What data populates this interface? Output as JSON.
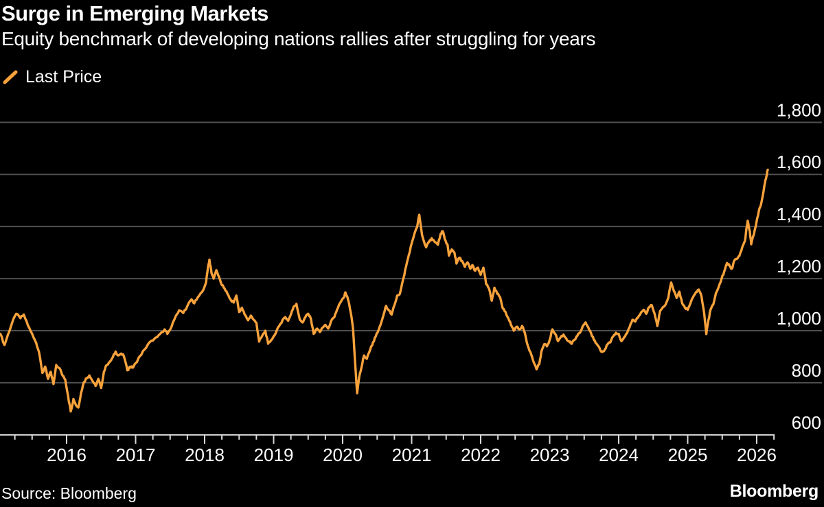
{
  "header": {
    "title": "Surge in Emerging Markets",
    "subtitle": "Equity benchmark of developing nations rallies after struggling for years"
  },
  "legend": {
    "label": "Last Price",
    "swatch": "orange-slash"
  },
  "footer": {
    "source": "Source: Bloomberg",
    "brand": "Bloomberg"
  },
  "colors": {
    "background": "#000000",
    "text": "#ffffff",
    "grid": "#4f4f4f",
    "axis": "#d9d9d9",
    "series": "#f7a23c"
  },
  "chart_data": {
    "type": "line",
    "title": "Surge in Emerging Markets",
    "subtitle": "Equity benchmark of developing nations rallies after struggling for years",
    "xlabel": "",
    "ylabel": "",
    "x_unit": "decimal_year",
    "x_year_ticks": [
      2016,
      2017,
      2018,
      2019,
      2020,
      2021,
      2022,
      2023,
      2024,
      2025,
      2026
    ],
    "x_minor_tick_step": 0.25,
    "xlim": [
      2015.03,
      2026.27
    ],
    "y_ticks": [
      600,
      800,
      1000,
      1200,
      1400,
      1600,
      1800
    ],
    "ylim": [
      600,
      1800
    ],
    "grid": "horizontal",
    "y_axis_side": "right",
    "legend_position": "top-left",
    "jitter_amplitude": 8,
    "series": [
      {
        "name": "Last Price",
        "color": "#f7a23c",
        "points": [
          [
            2015.04,
            988
          ],
          [
            2015.1,
            945
          ],
          [
            2015.15,
            985
          ],
          [
            2015.21,
            1030
          ],
          [
            2015.27,
            1065
          ],
          [
            2015.33,
            1048
          ],
          [
            2015.38,
            1062
          ],
          [
            2015.44,
            1020
          ],
          [
            2015.5,
            988
          ],
          [
            2015.56,
            952
          ],
          [
            2015.6,
            918
          ],
          [
            2015.65,
            838
          ],
          [
            2015.69,
            862
          ],
          [
            2015.73,
            815
          ],
          [
            2015.77,
            842
          ],
          [
            2015.81,
            795
          ],
          [
            2015.85,
            868
          ],
          [
            2015.9,
            855
          ],
          [
            2015.94,
            828
          ],
          [
            2015.98,
            812
          ],
          [
            2016.02,
            752
          ],
          [
            2016.06,
            690
          ],
          [
            2016.1,
            738
          ],
          [
            2016.14,
            712
          ],
          [
            2016.17,
            705
          ],
          [
            2016.21,
            762
          ],
          [
            2016.25,
            802
          ],
          [
            2016.29,
            818
          ],
          [
            2016.33,
            828
          ],
          [
            2016.38,
            805
          ],
          [
            2016.42,
            788
          ],
          [
            2016.46,
            815
          ],
          [
            2016.5,
            780
          ],
          [
            2016.54,
            842
          ],
          [
            2016.58,
            868
          ],
          [
            2016.63,
            882
          ],
          [
            2016.67,
            898
          ],
          [
            2016.71,
            920
          ],
          [
            2016.75,
            905
          ],
          [
            2016.79,
            912
          ],
          [
            2016.83,
            902
          ],
          [
            2016.88,
            848
          ],
          [
            2016.92,
            862
          ],
          [
            2016.96,
            858
          ],
          [
            2017.0,
            875
          ],
          [
            2017.06,
            902
          ],
          [
            2017.13,
            928
          ],
          [
            2017.19,
            952
          ],
          [
            2017.25,
            962
          ],
          [
            2017.31,
            975
          ],
          [
            2017.38,
            995
          ],
          [
            2017.42,
            1005
          ],
          [
            2017.46,
            988
          ],
          [
            2017.52,
            1015
          ],
          [
            2017.58,
            1055
          ],
          [
            2017.63,
            1078
          ],
          [
            2017.69,
            1068
          ],
          [
            2017.75,
            1095
          ],
          [
            2017.81,
            1120
          ],
          [
            2017.85,
            1105
          ],
          [
            2017.9,
            1128
          ],
          [
            2017.96,
            1148
          ],
          [
            2018.02,
            1185
          ],
          [
            2018.05,
            1245
          ],
          [
            2018.07,
            1273
          ],
          [
            2018.1,
            1222
          ],
          [
            2018.13,
            1200
          ],
          [
            2018.17,
            1232
          ],
          [
            2018.21,
            1205
          ],
          [
            2018.25,
            1175
          ],
          [
            2018.29,
            1162
          ],
          [
            2018.33,
            1142
          ],
          [
            2018.38,
            1118
          ],
          [
            2018.42,
            1108
          ],
          [
            2018.46,
            1135
          ],
          [
            2018.5,
            1072
          ],
          [
            2018.54,
            1088
          ],
          [
            2018.58,
            1062
          ],
          [
            2018.63,
            1040
          ],
          [
            2018.67,
            1058
          ],
          [
            2018.71,
            1042
          ],
          [
            2018.75,
            1030
          ],
          [
            2018.79,
            958
          ],
          [
            2018.83,
            978
          ],
          [
            2018.88,
            1000
          ],
          [
            2018.92,
            950
          ],
          [
            2018.96,
            962
          ],
          [
            2019.02,
            985
          ],
          [
            2019.08,
            1018
          ],
          [
            2019.13,
            1042
          ],
          [
            2019.17,
            1052
          ],
          [
            2019.21,
            1038
          ],
          [
            2019.25,
            1062
          ],
          [
            2019.29,
            1092
          ],
          [
            2019.33,
            1103
          ],
          [
            2019.38,
            1042
          ],
          [
            2019.42,
            1032
          ],
          [
            2019.46,
            1052
          ],
          [
            2019.5,
            1065
          ],
          [
            2019.54,
            1045
          ],
          [
            2019.58,
            988
          ],
          [
            2019.63,
            1008
          ],
          [
            2019.67,
            995
          ],
          [
            2019.71,
            1012
          ],
          [
            2019.75,
            1022
          ],
          [
            2019.79,
            1008
          ],
          [
            2019.83,
            1035
          ],
          [
            2019.88,
            1052
          ],
          [
            2019.92,
            1082
          ],
          [
            2019.96,
            1105
          ],
          [
            2020.02,
            1128
          ],
          [
            2020.04,
            1147
          ],
          [
            2020.08,
            1118
          ],
          [
            2020.12,
            1065
          ],
          [
            2020.15,
            1008
          ],
          [
            2020.18,
            880
          ],
          [
            2020.21,
            760
          ],
          [
            2020.24,
            822
          ],
          [
            2020.27,
            855
          ],
          [
            2020.31,
            905
          ],
          [
            2020.35,
            892
          ],
          [
            2020.4,
            928
          ],
          [
            2020.44,
            955
          ],
          [
            2020.48,
            978
          ],
          [
            2020.52,
            1002
          ],
          [
            2020.56,
            1032
          ],
          [
            2020.6,
            1068
          ],
          [
            2020.63,
            1095
          ],
          [
            2020.67,
            1078
          ],
          [
            2020.71,
            1062
          ],
          [
            2020.75,
            1098
          ],
          [
            2020.79,
            1135
          ],
          [
            2020.83,
            1142
          ],
          [
            2020.88,
            1200
          ],
          [
            2020.92,
            1248
          ],
          [
            2020.96,
            1292
          ],
          [
            2021.0,
            1335
          ],
          [
            2021.04,
            1372
          ],
          [
            2021.08,
            1398
          ],
          [
            2021.11,
            1445
          ],
          [
            2021.15,
            1368
          ],
          [
            2021.18,
            1342
          ],
          [
            2021.21,
            1320
          ],
          [
            2021.25,
            1340
          ],
          [
            2021.29,
            1355
          ],
          [
            2021.33,
            1342
          ],
          [
            2021.38,
            1330
          ],
          [
            2021.42,
            1372
          ],
          [
            2021.45,
            1382
          ],
          [
            2021.48,
            1352
          ],
          [
            2021.52,
            1330
          ],
          [
            2021.54,
            1288
          ],
          [
            2021.58,
            1312
          ],
          [
            2021.62,
            1300
          ],
          [
            2021.65,
            1258
          ],
          [
            2021.69,
            1280
          ],
          [
            2021.73,
            1268
          ],
          [
            2021.77,
            1245
          ],
          [
            2021.81,
            1262
          ],
          [
            2021.85,
            1238
          ],
          [
            2021.88,
            1252
          ],
          [
            2021.92,
            1230
          ],
          [
            2021.96,
            1242
          ],
          [
            2022.0,
            1215
          ],
          [
            2022.04,
            1242
          ],
          [
            2022.08,
            1178
          ],
          [
            2022.12,
            1162
          ],
          [
            2022.16,
            1115
          ],
          [
            2022.2,
            1165
          ],
          [
            2022.24,
            1142
          ],
          [
            2022.28,
            1130
          ],
          [
            2022.32,
            1085
          ],
          [
            2022.36,
            1072
          ],
          [
            2022.4,
            1048
          ],
          [
            2022.44,
            1022
          ],
          [
            2022.48,
            1000
          ],
          [
            2022.52,
            1015
          ],
          [
            2022.56,
            1005
          ],
          [
            2022.6,
            1018
          ],
          [
            2022.64,
            992
          ],
          [
            2022.68,
            945
          ],
          [
            2022.72,
            918
          ],
          [
            2022.76,
            885
          ],
          [
            2022.81,
            852
          ],
          [
            2022.85,
            872
          ],
          [
            2022.88,
            920
          ],
          [
            2022.92,
            948
          ],
          [
            2022.96,
            940
          ],
          [
            2023.0,
            965
          ],
          [
            2023.04,
            1005
          ],
          [
            2023.08,
            988
          ],
          [
            2023.12,
            960
          ],
          [
            2023.16,
            975
          ],
          [
            2023.2,
            985
          ],
          [
            2023.24,
            970
          ],
          [
            2023.28,
            958
          ],
          [
            2023.32,
            950
          ],
          [
            2023.36,
            965
          ],
          [
            2023.4,
            980
          ],
          [
            2023.44,
            992
          ],
          [
            2023.48,
            1018
          ],
          [
            2023.52,
            1032
          ],
          [
            2023.56,
            1012
          ],
          [
            2023.6,
            990
          ],
          [
            2023.64,
            965
          ],
          [
            2023.68,
            950
          ],
          [
            2023.72,
            935
          ],
          [
            2023.76,
            918
          ],
          [
            2023.8,
            928
          ],
          [
            2023.84,
            948
          ],
          [
            2023.88,
            955
          ],
          [
            2023.92,
            978
          ],
          [
            2023.96,
            992
          ],
          [
            2024.0,
            988
          ],
          [
            2024.04,
            960
          ],
          [
            2024.08,
            975
          ],
          [
            2024.12,
            990
          ],
          [
            2024.16,
            1015
          ],
          [
            2024.2,
            1042
          ],
          [
            2024.24,
            1035
          ],
          [
            2024.28,
            1050
          ],
          [
            2024.32,
            1068
          ],
          [
            2024.36,
            1080
          ],
          [
            2024.4,
            1065
          ],
          [
            2024.44,
            1090
          ],
          [
            2024.48,
            1098
          ],
          [
            2024.52,
            1065
          ],
          [
            2024.56,
            1018
          ],
          [
            2024.6,
            1075
          ],
          [
            2024.64,
            1090
          ],
          [
            2024.68,
            1100
          ],
          [
            2024.72,
            1128
          ],
          [
            2024.76,
            1185
          ],
          [
            2024.8,
            1152
          ],
          [
            2024.84,
            1126
          ],
          [
            2024.88,
            1150
          ],
          [
            2024.92,
            1105
          ],
          [
            2024.96,
            1088
          ],
          [
            2025.0,
            1080
          ],
          [
            2025.04,
            1105
          ],
          [
            2025.08,
            1130
          ],
          [
            2025.12,
            1148
          ],
          [
            2025.16,
            1158
          ],
          [
            2025.2,
            1132
          ],
          [
            2025.24,
            1065
          ],
          [
            2025.27,
            987
          ],
          [
            2025.3,
            1040
          ],
          [
            2025.33,
            1080
          ],
          [
            2025.37,
            1100
          ],
          [
            2025.41,
            1145
          ],
          [
            2025.45,
            1168
          ],
          [
            2025.49,
            1198
          ],
          [
            2025.53,
            1228
          ],
          [
            2025.57,
            1260
          ],
          [
            2025.61,
            1248
          ],
          [
            2025.64,
            1238
          ],
          [
            2025.67,
            1266
          ],
          [
            2025.71,
            1275
          ],
          [
            2025.75,
            1288
          ],
          [
            2025.79,
            1320
          ],
          [
            2025.83,
            1345
          ],
          [
            2025.85,
            1390
          ],
          [
            2025.87,
            1422
          ],
          [
            2025.9,
            1382
          ],
          [
            2025.92,
            1332
          ],
          [
            2025.96,
            1370
          ],
          [
            2026.0,
            1422
          ],
          [
            2026.03,
            1458
          ],
          [
            2026.06,
            1482
          ],
          [
            2026.09,
            1520
          ],
          [
            2026.12,
            1568
          ],
          [
            2026.14,
            1592
          ],
          [
            2026.16,
            1618
          ]
        ]
      }
    ]
  }
}
